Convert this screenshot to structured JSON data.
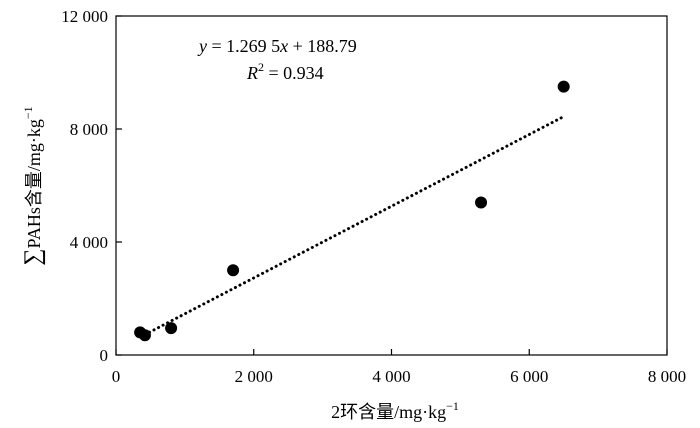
{
  "chart_data": {
    "type": "scatter",
    "xlabel_main": "2环含量/mg·kg",
    "xlabel_sup": "−1",
    "ylabel_sigma": "∑",
    "ylabel_main": "PAHs含量/mg·kg",
    "ylabel_sup": "−1",
    "xlim": [
      0,
      8000
    ],
    "ylim": [
      0,
      12000
    ],
    "x_ticks": [
      0,
      2000,
      4000,
      6000,
      8000
    ],
    "x_tick_labels": [
      "0",
      "2 000",
      "4 000",
      "6 000",
      "8 000"
    ],
    "y_ticks": [
      0,
      4000,
      8000,
      12000
    ],
    "y_tick_labels": [
      "0",
      "4 000",
      "8 000",
      "12 000"
    ],
    "points": [
      {
        "x": 350,
        "y": 800
      },
      {
        "x": 420,
        "y": 700
      },
      {
        "x": 800,
        "y": 950
      },
      {
        "x": 1700,
        "y": 3000
      },
      {
        "x": 5300,
        "y": 5400
      },
      {
        "x": 6500,
        "y": 9500
      }
    ],
    "trendline": {
      "slope": 1.2695,
      "intercept": 188.79,
      "x_start": 420,
      "x_end": 6500,
      "style": "dotted"
    },
    "annotation": {
      "eq_y": "y",
      "eq_rest": " = 1.269 5",
      "eq_x": "x",
      "eq_tail": " + 188.79",
      "r2_R": "R",
      "r2_sup": "2",
      "r2_tail": " = 0.934"
    },
    "grid": false,
    "legend": "none",
    "marker_color": "#000000"
  }
}
